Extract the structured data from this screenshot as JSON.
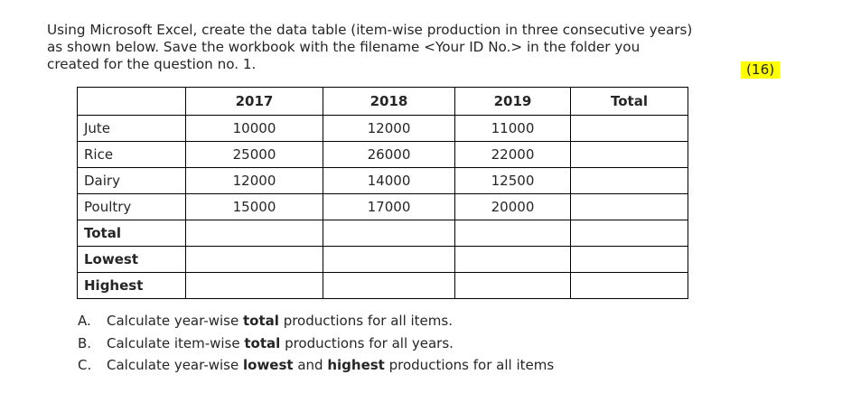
{
  "question": {
    "lines": [
      "Using Microsoft Excel, create the data table (item-wise production in three consecutive years)",
      "as shown below. Save the workbook with the filename <Your ID No.> in the folder you",
      "created for the question no. 1."
    ],
    "marks": "(16)"
  },
  "table": {
    "columns": [
      "",
      "2017",
      "2018",
      "2019",
      "Total"
    ],
    "rows": [
      {
        "label": "Jute",
        "values": [
          "10000",
          "12000",
          "11000",
          ""
        ]
      },
      {
        "label": "Rice",
        "values": [
          "25000",
          "26000",
          "22000",
          ""
        ]
      },
      {
        "label": "Dairy",
        "values": [
          "12000",
          "14000",
          "12500",
          ""
        ]
      },
      {
        "label": "Poultry",
        "values": [
          "15000",
          "17000",
          "20000",
          ""
        ]
      },
      {
        "label": "Total",
        "values": [
          "",
          "",
          "",
          ""
        ]
      },
      {
        "label": "Lowest",
        "values": [
          "",
          "",
          "",
          ""
        ]
      },
      {
        "label": "Highest",
        "values": [
          "",
          "",
          "",
          ""
        ]
      }
    ]
  },
  "tasks": [
    {
      "letter": "A.",
      "before": "Calculate year-wise ",
      "bold1": "total",
      "middle": " productions for all items.",
      "bold2": "",
      "after": ""
    },
    {
      "letter": "B.",
      "before": "Calculate item-wise ",
      "bold1": "total",
      "middle": " productions for all years.",
      "bold2": "",
      "after": ""
    },
    {
      "letter": "C.",
      "before": "Calculate year-wise ",
      "bold1": "lowest",
      "middle": " and ",
      "bold2": "highest",
      "after": " productions for all items"
    }
  ]
}
